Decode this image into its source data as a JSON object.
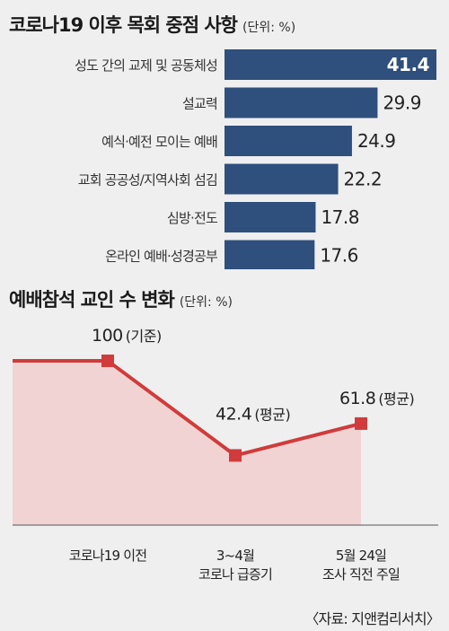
{
  "chart_data": [
    {
      "type": "bar",
      "orientation": "horizontal",
      "title": "코로나19 이후 목회 중점 사항",
      "unit": "(단위: %)",
      "categories": [
        "성도 간의 교제 및 공동체성",
        "설교력",
        "예식·예전 모이는 예배",
        "교회 공공성/지역사회 섬김",
        "심방·전도",
        "온라인 예배·성경공부"
      ],
      "values": [
        41.4,
        29.9,
        24.9,
        22.2,
        17.8,
        17.6
      ],
      "value_labels": [
        "41.4",
        "29.9",
        "24.9",
        "22.2",
        "17.8",
        "17.6"
      ],
      "color": "#2f4f7c"
    },
    {
      "type": "area",
      "title": "예배참석 교인 수 변화",
      "unit": "(단위: %)",
      "categories": [
        [
          "코로나19 이전"
        ],
        [
          "3~4월",
          "코로나 급증기"
        ],
        [
          "5월 24일",
          "조사 직전 주일"
        ]
      ],
      "values": [
        100,
        42.4,
        61.8
      ],
      "value_labels": [
        "100",
        "42.4",
        "61.8"
      ],
      "notes": [
        "(기준)",
        "(평균)",
        "(평균)"
      ],
      "ylim": [
        0,
        100
      ],
      "line_color": "#d13b3b",
      "fill_color": "#f1d3d3"
    }
  ],
  "source": "〈자료: 지앤컴리서치〉"
}
